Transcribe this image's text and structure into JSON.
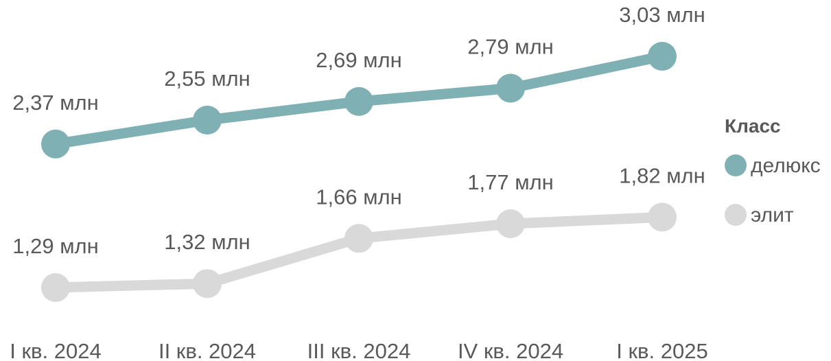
{
  "chart_data": {
    "type": "line",
    "title": "",
    "xlabel": "",
    "ylabel": "",
    "categories": [
      "I кв. 2024",
      "II кв. 2024",
      "III кв. 2024",
      "IV кв. 2024",
      "I кв. 2025"
    ],
    "ylim": [
      1.0,
      3.1
    ],
    "grid": false,
    "legend_position": "right",
    "legend_title": "Класс",
    "series": [
      {
        "name": "делюкс",
        "color": "#7fb0b3",
        "values": [
          2.37,
          2.55,
          2.69,
          2.79,
          3.03
        ],
        "labels": [
          "2,37 млн",
          "2,55 млн",
          "2,69 млн",
          "2,79 млн",
          "3,03 млн"
        ]
      },
      {
        "name": "элит",
        "color": "#d9d9d9",
        "values": [
          1.29,
          1.32,
          1.66,
          1.77,
          1.82
        ],
        "labels": [
          "1,29 млн",
          "1,32 млн",
          "1,66 млн",
          "1,77 млн",
          "1,82 млн"
        ]
      }
    ]
  }
}
